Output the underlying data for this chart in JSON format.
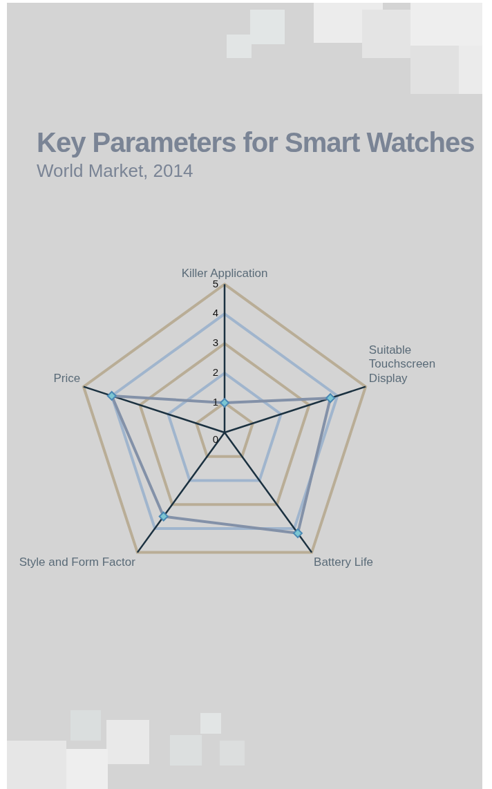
{
  "chart_data": {
    "type": "radar",
    "title": "Key Parameters for Smart Watches",
    "subtitle": "World Market, 2014",
    "categories": [
      "Killer Application",
      "Suitable Touchscreen Display",
      "Battery Life",
      "Style and Form Factor",
      "Price"
    ],
    "series": [
      {
        "color": "#8391a8",
        "values": [
          1,
          3.75,
          4.2,
          3.5,
          4
        ]
      }
    ],
    "ylim": [
      0,
      5
    ],
    "yticks": [
      0,
      1,
      2,
      3,
      4,
      5
    ],
    "grid": true,
    "legend": false,
    "marker": "diamond",
    "line_style": "solid"
  }
}
